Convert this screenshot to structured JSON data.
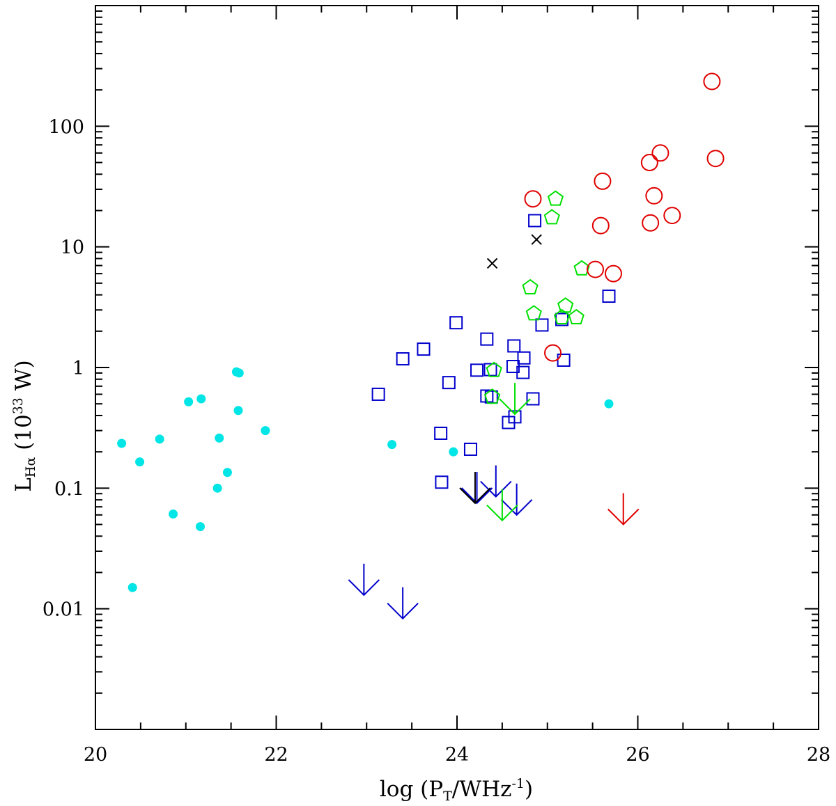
{
  "chart_data": {
    "type": "scatter",
    "xlabel": "log (P_T/WHz^-1)",
    "ylabel": "L_Hα (10^33 W)",
    "xlim": [
      20,
      28
    ],
    "ylim_log10": [
      -3,
      3
    ],
    "y_scale": "log",
    "x_ticks": [
      "20",
      "22",
      "24",
      "26",
      "28"
    ],
    "y_ticks": [
      "0.01",
      "0.1",
      "1",
      "10",
      "100"
    ],
    "grid": false,
    "legend": "none",
    "series": [
      {
        "marker": "filled-circle",
        "color": "#00e5e5",
        "points": [
          [
            20.29,
            0.235
          ],
          [
            20.41,
            0.015
          ],
          [
            20.49,
            0.165
          ],
          [
            20.71,
            0.255
          ],
          [
            20.86,
            0.061
          ],
          [
            21.03,
            0.52
          ],
          [
            21.16,
            0.048
          ],
          [
            21.17,
            0.55
          ],
          [
            21.35,
            0.1
          ],
          [
            21.37,
            0.26
          ],
          [
            21.46,
            0.135
          ],
          [
            21.56,
            0.92
          ],
          [
            21.59,
            0.9
          ],
          [
            21.58,
            0.44
          ],
          [
            21.88,
            0.3
          ],
          [
            23.28,
            0.23
          ],
          [
            23.96,
            0.2
          ],
          [
            25.68,
            0.5
          ]
        ]
      },
      {
        "marker": "open-square",
        "color": "#0000cc",
        "points": [
          [
            23.13,
            0.6
          ],
          [
            23.4,
            1.18
          ],
          [
            23.63,
            1.42
          ],
          [
            23.82,
            0.285
          ],
          [
            23.83,
            0.112
          ],
          [
            23.91,
            0.75
          ],
          [
            23.99,
            2.35
          ],
          [
            24.15,
            0.21
          ],
          [
            24.22,
            0.95
          ],
          [
            24.33,
            1.72
          ],
          [
            24.33,
            0.58
          ],
          [
            24.37,
            0.96
          ],
          [
            24.38,
            0.57
          ],
          [
            24.57,
            0.35
          ],
          [
            24.63,
            1.51
          ],
          [
            24.62,
            1.02
          ],
          [
            24.64,
            0.39
          ],
          [
            24.73,
            0.91
          ],
          [
            24.74,
            1.2
          ],
          [
            24.84,
            0.55
          ],
          [
            24.86,
            16.5
          ],
          [
            24.94,
            2.25
          ],
          [
            25.16,
            2.5
          ],
          [
            25.18,
            1.15
          ],
          [
            25.68,
            3.9
          ]
        ]
      },
      {
        "marker": "open-pentagon",
        "color": "#00e000",
        "points": [
          [
            24.41,
            0.95
          ],
          [
            24.39,
            0.57
          ],
          [
            24.81,
            4.6
          ],
          [
            24.85,
            2.8
          ],
          [
            25.05,
            17.5
          ],
          [
            25.09,
            25.0
          ],
          [
            25.2,
            3.25
          ],
          [
            25.16,
            2.6
          ],
          [
            25.32,
            2.6
          ],
          [
            25.38,
            6.6
          ]
        ]
      },
      {
        "marker": "open-circle",
        "color": "#e00000",
        "points": [
          [
            24.84,
            25.0
          ],
          [
            25.06,
            1.32
          ],
          [
            25.53,
            6.5
          ],
          [
            25.59,
            15.0
          ],
          [
            25.61,
            35.0
          ],
          [
            25.73,
            6.0
          ],
          [
            26.13,
            50.0
          ],
          [
            26.14,
            15.8
          ],
          [
            26.18,
            26.5
          ],
          [
            26.25,
            60.0
          ],
          [
            26.38,
            18.2
          ],
          [
            26.82,
            235.0
          ],
          [
            26.86,
            54.0
          ]
        ]
      },
      {
        "marker": "cross",
        "color": "#000000",
        "points": [
          [
            24.39,
            7.3
          ],
          [
            24.88,
            11.5
          ]
        ]
      },
      {
        "marker": "upper-limit-arrow",
        "color": "#0000cc",
        "points": [
          [
            22.97,
            0.013
          ],
          [
            23.4,
            0.0083
          ],
          [
            24.22,
            0.075
          ],
          [
            24.43,
            0.085
          ],
          [
            24.66,
            0.06
          ]
        ]
      },
      {
        "marker": "upper-limit-arrow",
        "color": "#00e000",
        "points": [
          [
            24.64,
            0.41
          ],
          [
            24.5,
            0.054
          ]
        ]
      },
      {
        "marker": "upper-limit-arrow",
        "color": "#000000",
        "points": [
          [
            24.2,
            0.075
          ]
        ]
      },
      {
        "marker": "upper-limit-arrow",
        "color": "#e00000",
        "points": [
          [
            25.84,
            0.05
          ]
        ]
      }
    ]
  }
}
